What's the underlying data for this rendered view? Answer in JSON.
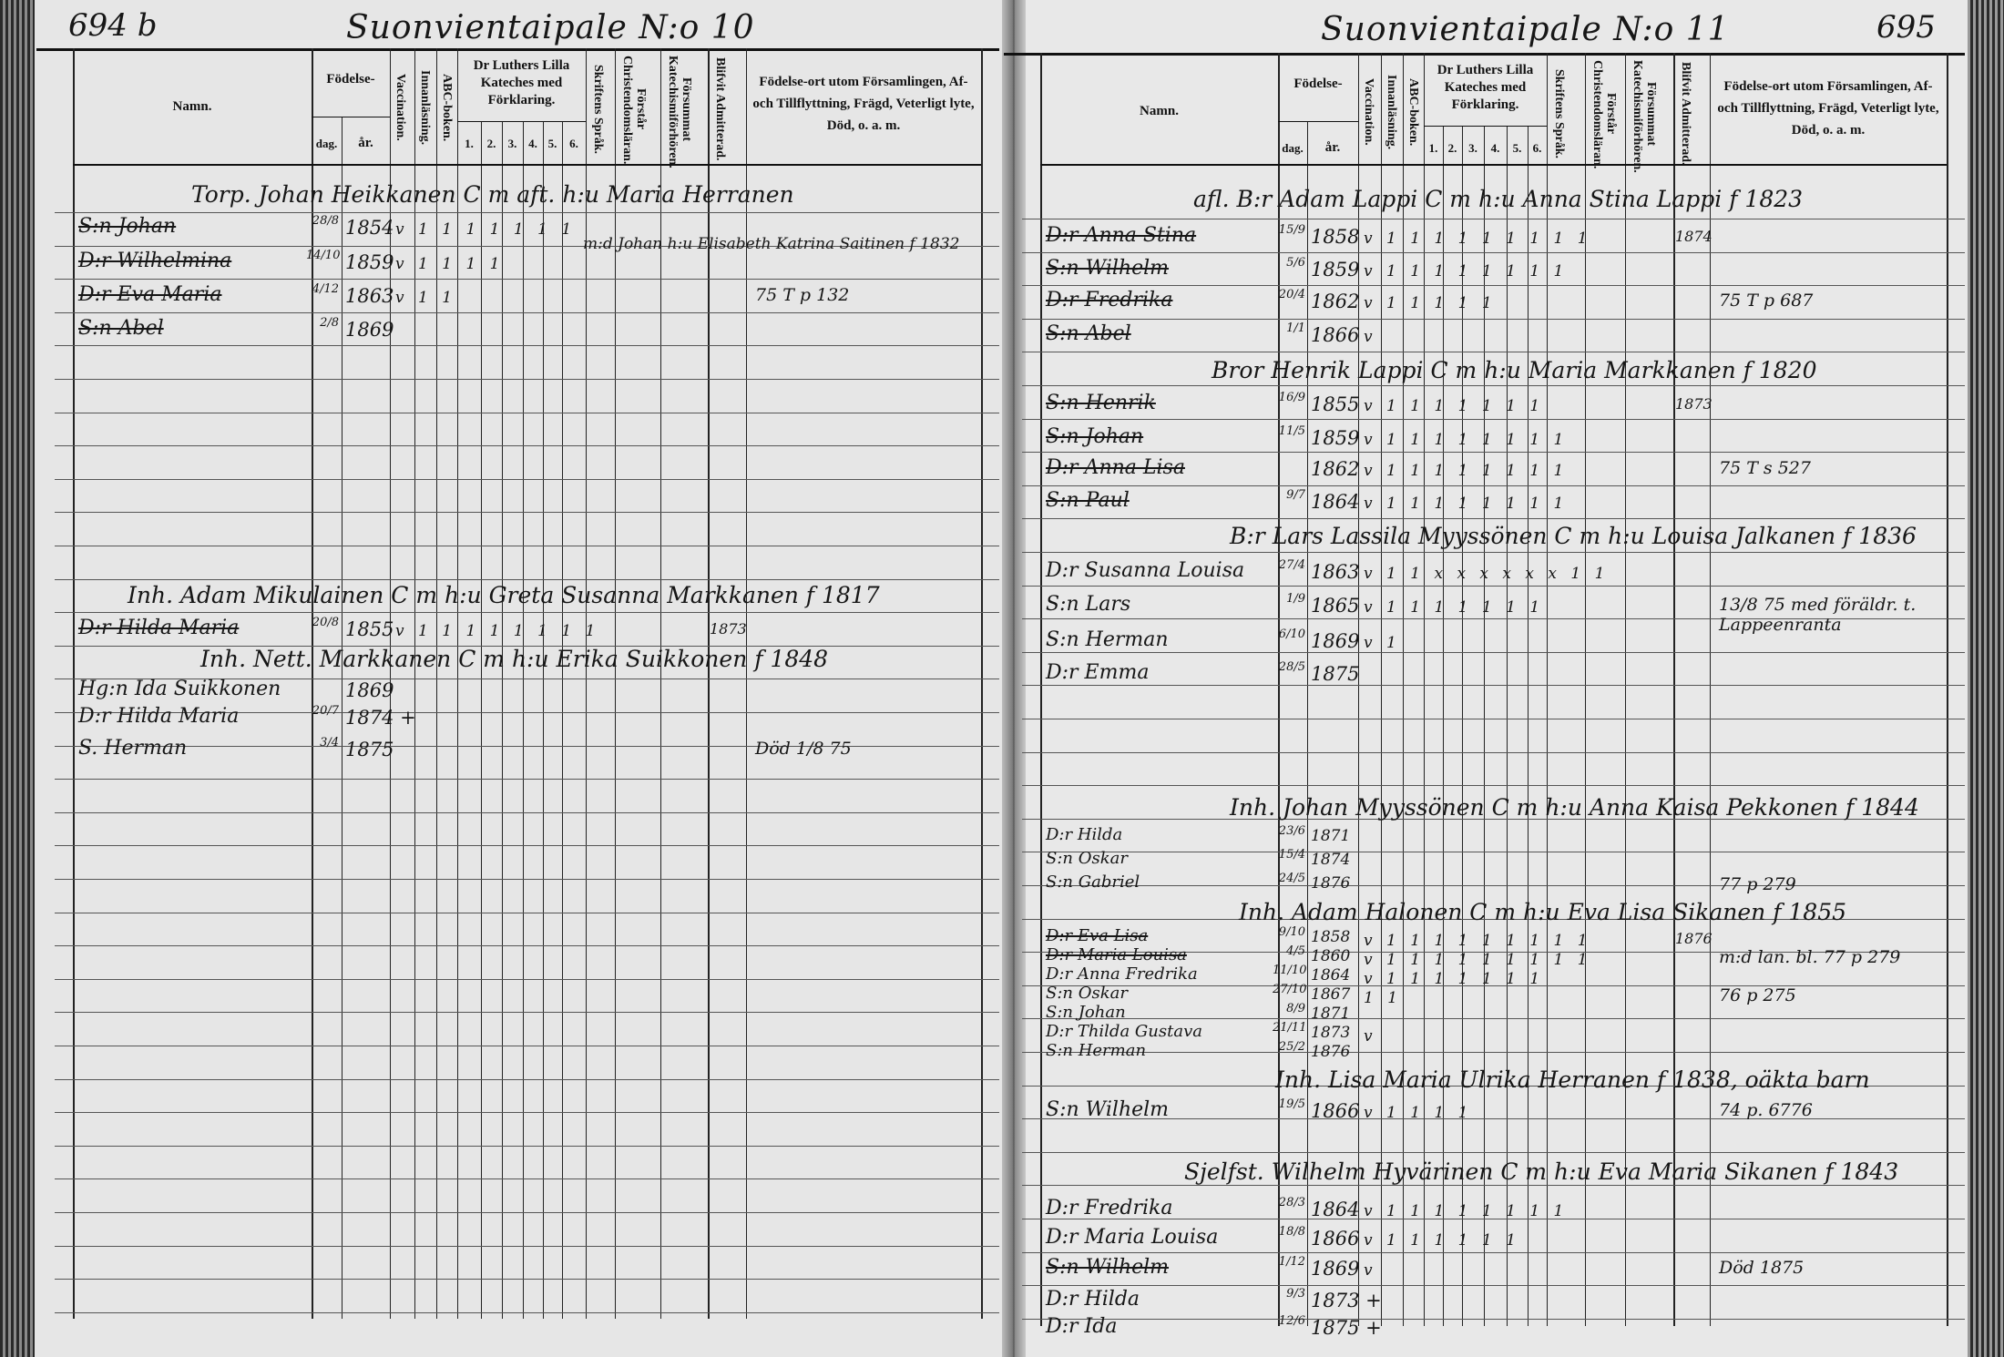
{
  "left_page": {
    "page_number": "694 b",
    "parish_heading": "Suonvientaipale N:o 10",
    "rows": [
      {
        "type": "household",
        "text": "Torp. Johan Heikkanen C m aft. h:u Maria Herranen"
      },
      {
        "type": "person",
        "name": "S:n Johan",
        "day": "28/8",
        "year": "1854",
        "checks": "v 1 1 1 1 1 1 1",
        "struck": true
      },
      {
        "type": "annotation",
        "text": "m:d Johan h:u Elisabeth Katrina Saitinen f 1832"
      },
      {
        "type": "person",
        "name": "D:r Wilhelmina",
        "day": "14/10",
        "year": "1859",
        "checks": "v 1 1 1 1",
        "struck": true
      },
      {
        "type": "person",
        "name": "D:r Eva Maria",
        "day": "4/12",
        "year": "1863",
        "checks": "v 1 1",
        "note": "75 T p 132",
        "struck": true
      },
      {
        "type": "person",
        "name": "S:n Abel",
        "day": "2/8",
        "year": "1869",
        "struck": true
      },
      {
        "type": "household",
        "text": "Inh. Adam Mikulainen C m h:u Greta Susanna Markkanen f 1817"
      },
      {
        "type": "person",
        "name": "D:r Hilda Maria",
        "day": "20/8",
        "year": "1855",
        "checks": "v 1 1 1 1 1 1 1 1",
        "admitted": "1873",
        "struck": true
      },
      {
        "type": "household",
        "text": "Inh. Nett. Markkanen C m h:u Erika Suikkonen f 1848"
      },
      {
        "type": "person",
        "name": "Hg:n Ida Suikkonen",
        "day": "",
        "year": "1869"
      },
      {
        "type": "person",
        "name": "D:r Hilda Maria",
        "day": "20/7",
        "year": "1874 +"
      },
      {
        "type": "person",
        "name": "S. Herman",
        "day": "3/4",
        "year": "1875",
        "note": "Död 1/8 75"
      }
    ]
  },
  "right_page": {
    "page_number": "695",
    "parish_heading": "Suonvientaipale N:o 11",
    "rows": [
      {
        "type": "household",
        "text": "afl. B:r Adam Lappi C m h:u Anna Stina Lappi f 1823"
      },
      {
        "type": "person",
        "name": "D:r Anna Stina",
        "day": "15/9",
        "year": "1858",
        "checks": "v 1 1 1 1 1 1 1 1 1",
        "admitted": "1874",
        "struck": true
      },
      {
        "type": "person",
        "name": "S:n Wilhelm",
        "day": "5/6",
        "year": "1859",
        "checks": "v 1 1 1 1 1 1 1 1",
        "struck": true
      },
      {
        "type": "person",
        "name": "D:r Fredrika",
        "day": "20/4",
        "year": "1862",
        "checks": "v 1 1 1 1 1",
        "note": "75 T p 687",
        "struck": true
      },
      {
        "type": "person",
        "name": "S:n Abel",
        "day": "1/1",
        "year": "1866",
        "checks": "v",
        "struck": true
      },
      {
        "type": "household",
        "text": "Bror Henrik Lappi C m h:u Maria Markkanen f 1820"
      },
      {
        "type": "person",
        "name": "S:n Henrik",
        "day": "16/9",
        "year": "1855",
        "checks": "v 1 1 1 1 1 1 1",
        "admitted": "1873",
        "struck": true
      },
      {
        "type": "person",
        "name": "S:n Johan",
        "day": "11/5",
        "year": "1859",
        "checks": "v 1 1 1 1 1 1 1 1",
        "struck": true
      },
      {
        "type": "person",
        "name": "D:r Anna Lisa",
        "day": "",
        "year": "1862",
        "checks": "v 1 1 1 1 1 1 1 1",
        "note": "75 T s 527",
        "struck": true
      },
      {
        "type": "person",
        "name": "S:n Paul",
        "day": "9/7",
        "year": "1864",
        "checks": "v 1 1 1 1 1 1 1 1",
        "struck": true
      },
      {
        "type": "household",
        "text": "B:r Lars Lassila Myyssönen C m h:u Louisa Jalkanen f 1836"
      },
      {
        "type": "person",
        "name": "D:r Susanna Louisa",
        "day": "27/4",
        "year": "1863",
        "checks": "v 1 1 x x x x x x 1 1"
      },
      {
        "type": "person",
        "name": "S:n Lars",
        "day": "1/9",
        "year": "1865",
        "checks": "v 1 1 1 1 1 1 1",
        "note": "13/8 75 med föräldr. t. Lappeenranta"
      },
      {
        "type": "person",
        "name": "S:n Herman",
        "day": "6/10",
        "year": "1869",
        "checks": "v 1"
      },
      {
        "type": "person",
        "name": "D:r Emma",
        "day": "28/5",
        "year": "1875"
      },
      {
        "type": "household",
        "text": "Inh. Johan Myyssönen C m h:u Anna Kaisa Pekkonen f 1844"
      },
      {
        "type": "person",
        "name": "D:r Hilda",
        "day": "23/6",
        "year": "1871",
        "small": true
      },
      {
        "type": "person",
        "name": "S:n Oskar",
        "day": "15/4",
        "year": "1874",
        "small": true
      },
      {
        "type": "person",
        "name": "S:n Gabriel",
        "day": "24/5",
        "year": "1876",
        "note": "77 p 279",
        "small": true
      },
      {
        "type": "household",
        "text": "Inh. Adam Halonen C m h:u Eva Lisa Sikanen f 1855"
      },
      {
        "type": "person",
        "name": "D:r Eva Lisa",
        "day": "9/10",
        "year": "1858",
        "checks": "v 1 1 1 1 1 1 1 1 1",
        "admitted": "1876",
        "small": true,
        "struck": true
      },
      {
        "type": "person",
        "name": "D:r Maria Louisa",
        "day": "4/5",
        "year": "1860",
        "checks": "v 1 1 1 1 1 1 1 1 1",
        "note": "m:d lan. bl. 77 p 279",
        "small": true,
        "struck": true
      },
      {
        "type": "person",
        "name": "D:r Anna Fredrika",
        "day": "11/10",
        "year": "1864",
        "checks": "v 1 1 1 1 1 1 1",
        "small": true
      },
      {
        "type": "person",
        "name": "S:n Oskar",
        "day": "27/10",
        "year": "1867",
        "checks": "1 1",
        "note": "76 p 275",
        "small": true
      },
      {
        "type": "person",
        "name": "S:n Johan",
        "day": "8/9",
        "year": "1871",
        "small": true
      },
      {
        "type": "person",
        "name": "D:r Thilda Gustava",
        "day": "21/11",
        "year": "1873",
        "checks": "v",
        "small": true
      },
      {
        "type": "person",
        "name": "S:n Herman",
        "day": "25/2",
        "year": "1876",
        "small": true
      },
      {
        "type": "household",
        "text": "Inh. Lisa Maria Ulrika Herranen f 1838, oäkta barn"
      },
      {
        "type": "person",
        "name": "S:n Wilhelm",
        "day": "19/5",
        "year": "1866",
        "checks": "v 1 1 1 1",
        "note": "74 p. 6776"
      },
      {
        "type": "household",
        "text": "Sjelfst. Wilhelm Hyvärinen C m h:u Eva Maria Sikanen f 1843"
      },
      {
        "type": "person",
        "name": "D:r Fredrika",
        "day": "28/3",
        "year": "1864",
        "checks": "v 1 1 1 1 1 1 1 1"
      },
      {
        "type": "person",
        "name": "D:r Maria Louisa",
        "day": "18/8",
        "year": "1866",
        "checks": "v 1 1 1 1 1 1"
      },
      {
        "type": "person",
        "name": "S:n Wilhelm",
        "day": "1/12",
        "year": "1869",
        "checks": "v",
        "note": "Död 1875",
        "struck": true
      },
      {
        "type": "person",
        "name": "D:r Hilda",
        "day": "9/3",
        "year": "1873 +"
      },
      {
        "type": "person",
        "name": "D:r Ida",
        "day": "12/6",
        "year": "1875 +"
      }
    ]
  },
  "column_headers": {
    "name": "Namn.",
    "birth": "Födelse-",
    "birth_day": "dag.",
    "birth_year": "år.",
    "vaccination": "Vaccination.",
    "reading": "Innanläsning.",
    "abc": "ABC-boken.",
    "catechism": "Dr Luthers Lilla Kateches med Förklaring.",
    "catechism_parts": [
      "1.",
      "2.",
      "3.",
      "4.",
      "5.",
      "6."
    ],
    "scripture": "Skriftens Språk.",
    "understands": "Förstår Christendomsläran.",
    "missed": "Försummat Katechismiförhören.",
    "admitted": "Blifvit Admitterad.",
    "remarks": "Födelse-ort utom Församlingen, Af- och Tillflyttning, Frägd, Veterligt lyte, Död, o. a. m."
  }
}
